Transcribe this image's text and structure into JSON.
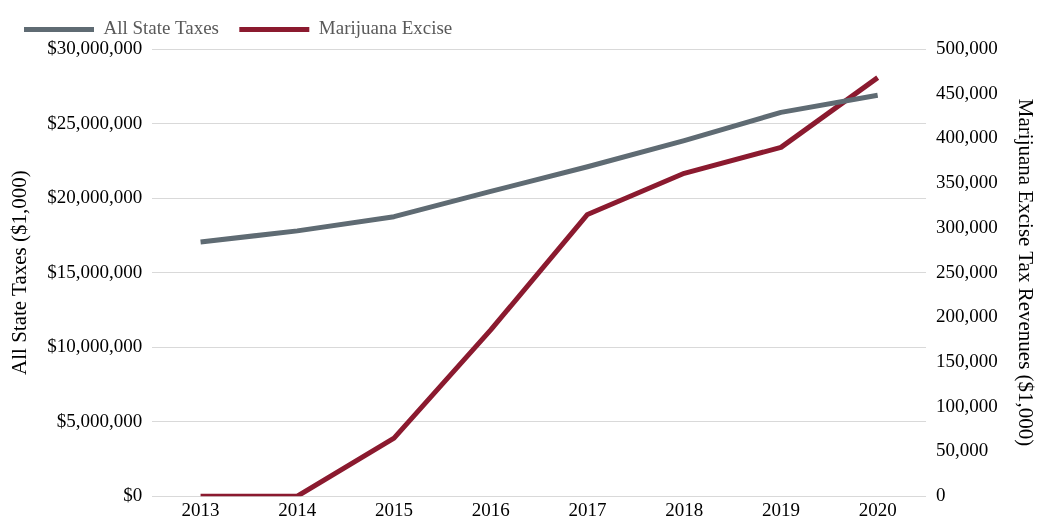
{
  "chart_data": {
    "type": "line",
    "xlabel": null,
    "ylabel": "All State Taxes ($1,000)",
    "y2label": "Marijuana Excise Tax Revenues ($1,000)",
    "categories": [
      "2013",
      "2014",
      "2015",
      "2016",
      "2017",
      "2018",
      "2019",
      "2020"
    ],
    "series": [
      {
        "name": "All State Taxes",
        "color": "#5f6b73",
        "values": [
          17050000,
          17800000,
          18750000,
          20450000,
          22100000,
          23850000,
          25750000,
          26900000
        ]
      },
      {
        "name": "Marijuana Excise",
        "color": "#8b1a2f",
        "axis": "y2",
        "values": [
          0,
          0,
          65000,
          186000,
          315000,
          361000,
          390000,
          468000
        ]
      }
    ],
    "ylim": [
      0,
      30000000
    ],
    "yticks": [
      {
        "value": 0,
        "label": "$0"
      },
      {
        "value": 5000000,
        "label": "$5,000,000"
      },
      {
        "value": 10000000,
        "label": "$10,000,000"
      },
      {
        "value": 15000000,
        "label": "$15,000,000"
      },
      {
        "value": 20000000,
        "label": "$20,000,000"
      },
      {
        "value": 25000000,
        "label": "$25,000,000"
      },
      {
        "value": 30000000,
        "label": "$30,000,000"
      }
    ],
    "y2lim": [
      0,
      500000
    ],
    "y2ticks": [
      {
        "value": 0,
        "label": "0"
      },
      {
        "value": 50000,
        "label": "50,000"
      },
      {
        "value": 100000,
        "label": "100,000"
      },
      {
        "value": 150000,
        "label": "150,000"
      },
      {
        "value": 200000,
        "label": "200,000"
      },
      {
        "value": 250000,
        "label": "250,000"
      },
      {
        "value": 300000,
        "label": "300,000"
      },
      {
        "value": 350000,
        "label": "350,000"
      },
      {
        "value": 400000,
        "label": "400,000"
      },
      {
        "value": 450000,
        "label": "450,000"
      },
      {
        "value": 500000,
        "label": "500,000"
      }
    ],
    "grid": "y",
    "legend": "top left",
    "marker": "none",
    "line_style": "solid"
  }
}
